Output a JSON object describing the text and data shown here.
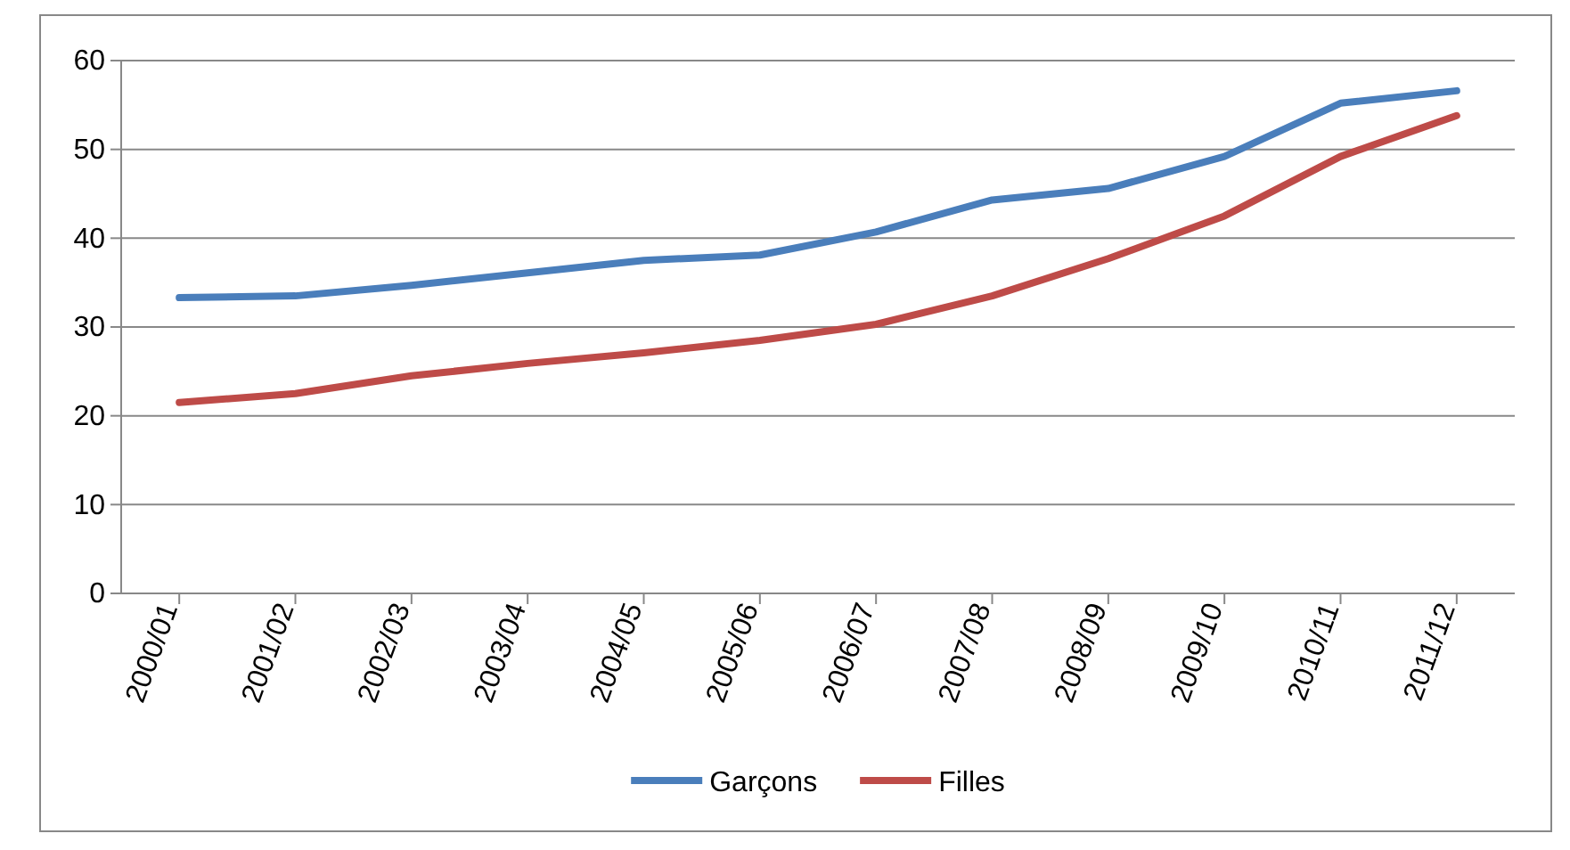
{
  "chart_data": {
    "type": "line",
    "categories": [
      "2000/01",
      "2001/02",
      "2002/03",
      "2003/04",
      "2004/05",
      "2005/06",
      "2006/07",
      "2007/08",
      "2008/09",
      "2009/10",
      "2010/11",
      "2011/12"
    ],
    "series": [
      {
        "name": "Garçons",
        "color": "#4a7ebb",
        "values": [
          33.3,
          33.5,
          34.7,
          36.1,
          37.5,
          38.1,
          40.7,
          44.3,
          45.6,
          49.2,
          55.2,
          56.6
        ]
      },
      {
        "name": "Filles",
        "color": "#be4b48",
        "values": [
          21.5,
          22.5,
          24.5,
          25.9,
          27.1,
          28.5,
          30.3,
          33.5,
          37.7,
          42.5,
          49.2,
          53.8
        ]
      }
    ],
    "ylim": [
      0,
      60
    ],
    "yticks": [
      0,
      10,
      20,
      30,
      40,
      50,
      60
    ],
    "grid": "y",
    "legend": "bottom",
    "marker": "none",
    "line_style": "solid"
  }
}
